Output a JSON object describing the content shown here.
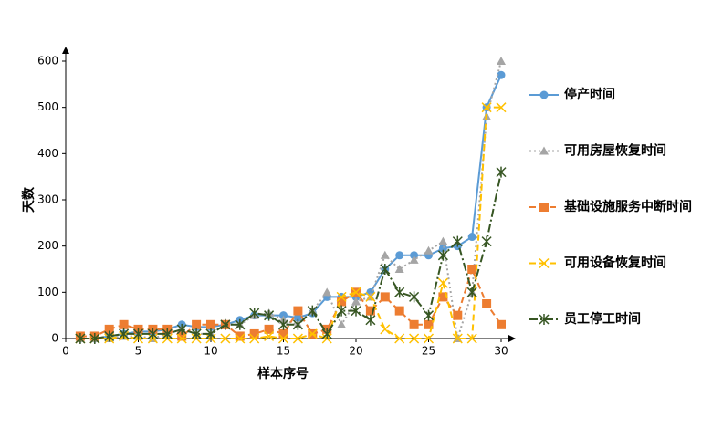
{
  "chart_data": {
    "type": "line",
    "x_label": "样本序号",
    "y_label": "天数",
    "x": [
      1,
      2,
      3,
      4,
      5,
      6,
      7,
      8,
      9,
      10,
      11,
      12,
      13,
      14,
      15,
      16,
      17,
      18,
      19,
      20,
      21,
      22,
      23,
      24,
      25,
      26,
      27,
      28,
      29,
      30
    ],
    "xlim": [
      0,
      30
    ],
    "xticks": [
      0,
      5,
      10,
      15,
      20,
      25,
      30
    ],
    "ylim": [
      0,
      600
    ],
    "yticks": [
      0,
      100,
      200,
      300,
      400,
      500,
      600
    ],
    "grid": false,
    "legend": "right",
    "series": [
      {
        "name": "停产时间",
        "color": "#5b9bd5",
        "marker": "circle",
        "dash": "solid",
        "values": [
          0,
          0,
          5,
          10,
          15,
          15,
          20,
          30,
          25,
          25,
          30,
          40,
          50,
          50,
          50,
          45,
          55,
          90,
          90,
          90,
          100,
          150,
          180,
          180,
          180,
          195,
          200,
          220,
          500,
          570
        ]
      },
      {
        "name": "可用房屋恢复时间",
        "color": "#a5a5a5",
        "marker": "triangle",
        "dash": "dotted",
        "values": [
          0,
          0,
          0,
          5,
          5,
          0,
          10,
          20,
          10,
          10,
          30,
          30,
          50,
          55,
          40,
          30,
          60,
          100,
          30,
          80,
          90,
          180,
          150,
          170,
          190,
          210,
          0,
          100,
          480,
          600
        ]
      },
      {
        "name": "基础设施服务中断时间",
        "color": "#ed7d31",
        "marker": "square",
        "dash": "dashed",
        "values": [
          5,
          5,
          20,
          30,
          20,
          20,
          20,
          5,
          30,
          30,
          30,
          5,
          10,
          20,
          10,
          60,
          10,
          20,
          80,
          100,
          60,
          90,
          60,
          30,
          30,
          90,
          50,
          150,
          75,
          30
        ]
      },
      {
        "name": "可用设备恢复时间",
        "color": "#ffc000",
        "marker": "x",
        "dash": "dashed",
        "values": [
          0,
          0,
          0,
          5,
          0,
          0,
          0,
          0,
          0,
          0,
          0,
          0,
          0,
          5,
          0,
          0,
          10,
          0,
          90,
          100,
          90,
          20,
          0,
          0,
          0,
          120,
          0,
          0,
          500,
          500
        ]
      },
      {
        "name": "员工停工时间",
        "color": "#375623",
        "marker": "star",
        "dash": "dashdot",
        "values": [
          0,
          0,
          5,
          10,
          10,
          10,
          10,
          20,
          10,
          10,
          30,
          30,
          55,
          50,
          30,
          30,
          60,
          10,
          60,
          60,
          40,
          150,
          100,
          90,
          50,
          180,
          210,
          100,
          210,
          360
        ]
      }
    ]
  }
}
